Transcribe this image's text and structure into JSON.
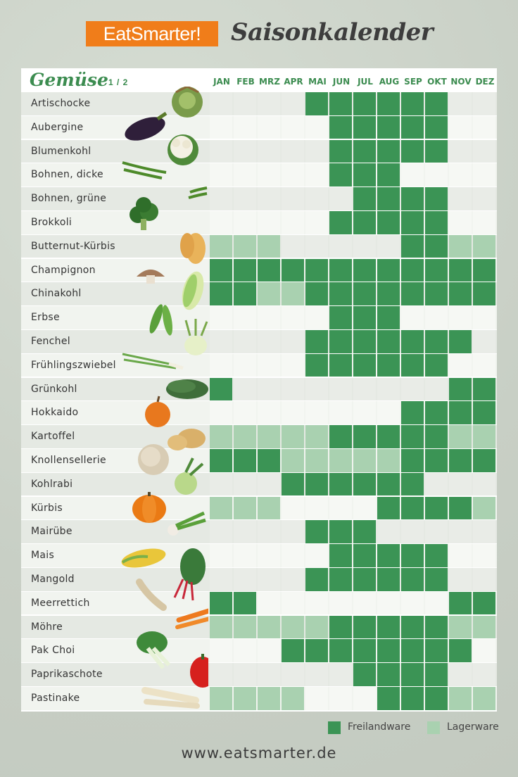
{
  "header": {
    "brand": "EatSmarter!",
    "title": "Saisonkalender"
  },
  "colors": {
    "freiland": "#3b9455",
    "lager": "#a9d1b0",
    "none_light": "#f1f4ef",
    "none_dark": "#e5e9e3"
  },
  "legend": {
    "freiland": "Freilandware",
    "lager": "Lagerware"
  },
  "footer": {
    "url": "www.eatsmarter.de"
  },
  "chart_data": {
    "type": "heatmap",
    "title": "Gemüse",
    "page": "1 / 2",
    "months": [
      "JAN",
      "FEB",
      "MRZ",
      "APR",
      "MAI",
      "JUN",
      "JUL",
      "AUG",
      "SEP",
      "OKT",
      "NOV",
      "DEZ"
    ],
    "legend": {
      "F": "Freilandware",
      "L": "Lagerware"
    },
    "rows": [
      {
        "name": "Artischocke",
        "months": [
          "",
          "",
          "",
          "",
          "F",
          "F",
          "F",
          "F",
          "F",
          "F",
          "",
          ""
        ]
      },
      {
        "name": "Aubergine",
        "months": [
          "",
          "",
          "",
          "",
          "",
          "F",
          "F",
          "F",
          "F",
          "F",
          "",
          ""
        ]
      },
      {
        "name": "Blumenkohl",
        "months": [
          "",
          "",
          "",
          "",
          "",
          "F",
          "F",
          "F",
          "F",
          "F",
          "",
          ""
        ]
      },
      {
        "name": "Bohnen, dicke",
        "months": [
          "",
          "",
          "",
          "",
          "",
          "F",
          "F",
          "F",
          "",
          "",
          "",
          ""
        ]
      },
      {
        "name": "Bohnen, grüne",
        "months": [
          "",
          "",
          "",
          "",
          "",
          "",
          "F",
          "F",
          "F",
          "F",
          "",
          ""
        ]
      },
      {
        "name": "Brokkoli",
        "months": [
          "",
          "",
          "",
          "",
          "",
          "F",
          "F",
          "F",
          "F",
          "F",
          "",
          ""
        ]
      },
      {
        "name": "Butternut-Kürbis",
        "months": [
          "L",
          "L",
          "L",
          "",
          "",
          "",
          "",
          "",
          "F",
          "F",
          "L",
          "L"
        ]
      },
      {
        "name": "Champignon",
        "months": [
          "F",
          "F",
          "F",
          "F",
          "F",
          "F",
          "F",
          "F",
          "F",
          "F",
          "F",
          "F"
        ]
      },
      {
        "name": "Chinakohl",
        "months": [
          "F",
          "F",
          "L",
          "L",
          "F",
          "F",
          "F",
          "F",
          "F",
          "F",
          "F",
          "F"
        ]
      },
      {
        "name": "Erbse",
        "months": [
          "",
          "",
          "",
          "",
          "",
          "F",
          "F",
          "F",
          "",
          "",
          "",
          ""
        ]
      },
      {
        "name": "Fenchel",
        "months": [
          "",
          "",
          "",
          "",
          "F",
          "F",
          "F",
          "F",
          "F",
          "F",
          "F",
          ""
        ]
      },
      {
        "name": "Frühlingszwiebel",
        "months": [
          "",
          "",
          "",
          "",
          "F",
          "F",
          "F",
          "F",
          "F",
          "F",
          "",
          ""
        ]
      },
      {
        "name": "Grünkohl",
        "months": [
          "F",
          "",
          "",
          "",
          "",
          "",
          "",
          "",
          "",
          "",
          "F",
          "F"
        ]
      },
      {
        "name": "Hokkaido",
        "months": [
          "",
          "",
          "",
          "",
          "",
          "",
          "",
          "",
          "F",
          "F",
          "F",
          "F"
        ]
      },
      {
        "name": "Kartoffel",
        "months": [
          "L",
          "L",
          "L",
          "L",
          "L",
          "F",
          "F",
          "F",
          "F",
          "F",
          "L",
          "L"
        ]
      },
      {
        "name": "Knollensellerie",
        "months": [
          "F",
          "F",
          "F",
          "L",
          "L",
          "L",
          "L",
          "L",
          "F",
          "F",
          "F",
          "F"
        ]
      },
      {
        "name": "Kohlrabi",
        "months": [
          "",
          "",
          "",
          "F",
          "F",
          "F",
          "F",
          "F",
          "F",
          "",
          "",
          ""
        ]
      },
      {
        "name": "Kürbis",
        "months": [
          "L",
          "L",
          "L",
          "",
          "",
          "",
          "",
          "F",
          "F",
          "F",
          "F",
          "L"
        ]
      },
      {
        "name": "Mairübe",
        "months": [
          "",
          "",
          "",
          "",
          "F",
          "F",
          "F",
          "",
          "",
          "",
          "",
          ""
        ]
      },
      {
        "name": "Mais",
        "months": [
          "",
          "",
          "",
          "",
          "",
          "F",
          "F",
          "F",
          "F",
          "F",
          "",
          ""
        ]
      },
      {
        "name": "Mangold",
        "months": [
          "",
          "",
          "",
          "",
          "F",
          "F",
          "F",
          "F",
          "F",
          "F",
          "",
          ""
        ]
      },
      {
        "name": "Meerrettich",
        "months": [
          "F",
          "F",
          "",
          "",
          "",
          "",
          "",
          "",
          "",
          "",
          "F",
          "F"
        ]
      },
      {
        "name": "Möhre",
        "months": [
          "L",
          "L",
          "L",
          "L",
          "L",
          "F",
          "F",
          "F",
          "F",
          "F",
          "L",
          "L"
        ]
      },
      {
        "name": "Pak Choi",
        "months": [
          "",
          "",
          "",
          "F",
          "F",
          "F",
          "F",
          "F",
          "F",
          "F",
          "F",
          ""
        ]
      },
      {
        "name": "Paprikaschote",
        "months": [
          "",
          "",
          "",
          "",
          "",
          "",
          "F",
          "F",
          "F",
          "F",
          "",
          ""
        ]
      },
      {
        "name": "Pastinake",
        "months": [
          "L",
          "L",
          "L",
          "L",
          "",
          "",
          "",
          "F",
          "F",
          "F",
          "L",
          "L"
        ]
      }
    ]
  }
}
